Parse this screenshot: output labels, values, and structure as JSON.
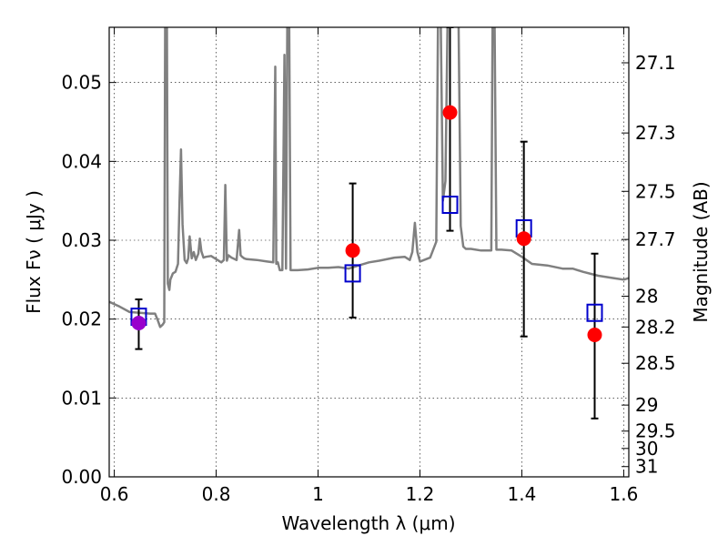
{
  "chart_data": {
    "type": "scatter",
    "xlabel": "Wavelength  λ (μm)",
    "ylabel": "Flux  Fν  ( μJy )",
    "ylabel_right": "Magnitude (AB)",
    "xlim": [
      0.59,
      1.61
    ],
    "ylim": [
      0.0,
      0.057
    ],
    "grid": true,
    "x_ticks": [
      0.6,
      0.8,
      1.0,
      1.2,
      1.4,
      1.6
    ],
    "x_tick_labels": [
      "0.6",
      "0.8",
      "1",
      "1.2",
      "1.4",
      "1.6"
    ],
    "y_ticks": [
      0.0,
      0.01,
      0.02,
      0.03,
      0.04,
      0.05
    ],
    "y_tick_labels": [
      "0.00",
      "0.01",
      "0.02",
      "0.03",
      "0.04",
      "0.05"
    ],
    "magnitude_ticks": [
      {
        "flux": 0.0525,
        "label": "27.1"
      },
      {
        "flux": 0.0436,
        "label": "27.3"
      },
      {
        "flux": 0.0362,
        "label": "27.5"
      },
      {
        "flux": 0.0301,
        "label": "27.7"
      },
      {
        "flux": 0.0229,
        "label": "28"
      },
      {
        "flux": 0.019,
        "label": "28.2"
      },
      {
        "flux": 0.0144,
        "label": "28.5"
      },
      {
        "flux": 0.0091,
        "label": "29"
      },
      {
        "flux": 0.0058,
        "label": "29.5"
      },
      {
        "flux": 0.0036,
        "label": "30"
      },
      {
        "flux": 0.0013,
        "label": "31"
      }
    ],
    "series": [
      {
        "name": "model spectrum",
        "kind": "line",
        "color": "#808080",
        "x": [
          0.59,
          0.61,
          0.63,
          0.65,
          0.67,
          0.68,
          0.685,
          0.69,
          0.695,
          0.698,
          0.7,
          0.703,
          0.705,
          0.708,
          0.71,
          0.715,
          0.72,
          0.725,
          0.728,
          0.731,
          0.734,
          0.738,
          0.742,
          0.745,
          0.748,
          0.752,
          0.756,
          0.76,
          0.765,
          0.768,
          0.771,
          0.775,
          0.78,
          0.79,
          0.8,
          0.81,
          0.815,
          0.818,
          0.821,
          0.824,
          0.83,
          0.84,
          0.845,
          0.848,
          0.851,
          0.855,
          0.86,
          0.88,
          0.9,
          0.912,
          0.916,
          0.918,
          0.921,
          0.925,
          0.93,
          0.934,
          0.937,
          0.94,
          0.943,
          0.946,
          0.95,
          0.96,
          0.98,
          1.0,
          1.02,
          1.04,
          1.06,
          1.08,
          1.1,
          1.12,
          1.15,
          1.17,
          1.18,
          1.185,
          1.19,
          1.195,
          1.2,
          1.22,
          1.232,
          1.236,
          1.24,
          1.245,
          1.25,
          1.255,
          1.26,
          1.265,
          1.27,
          1.275,
          1.28,
          1.285,
          1.29,
          1.3,
          1.32,
          1.34,
          1.343,
          1.346,
          1.35,
          1.36,
          1.38,
          1.4,
          1.42,
          1.45,
          1.48,
          1.5,
          1.52,
          1.55,
          1.58,
          1.6,
          1.61
        ],
        "y": [
          0.0222,
          0.0216,
          0.0209,
          0.0208,
          0.0207,
          0.0207,
          0.0199,
          0.019,
          0.0193,
          0.0196,
          0.062,
          0.062,
          0.0245,
          0.0237,
          0.025,
          0.0258,
          0.026,
          0.027,
          0.035,
          0.0415,
          0.032,
          0.0275,
          0.0271,
          0.0277,
          0.0305,
          0.0277,
          0.0285,
          0.0275,
          0.0283,
          0.0302,
          0.0286,
          0.0278,
          0.0279,
          0.028,
          0.0276,
          0.0272,
          0.0275,
          0.037,
          0.0274,
          0.0281,
          0.0278,
          0.0275,
          0.0313,
          0.0281,
          0.0279,
          0.0277,
          0.0276,
          0.0275,
          0.0273,
          0.0272,
          0.052,
          0.027,
          0.0272,
          0.0262,
          0.0262,
          0.0535,
          0.0264,
          0.062,
          0.062,
          0.0262,
          0.0262,
          0.0262,
          0.0263,
          0.0265,
          0.0265,
          0.0266,
          0.0264,
          0.0268,
          0.0272,
          0.0274,
          0.0278,
          0.0279,
          0.0275,
          0.0285,
          0.0322,
          0.0285,
          0.0273,
          0.0278,
          0.0298,
          0.062,
          0.062,
          0.035,
          0.0375,
          0.062,
          0.062,
          0.062,
          0.062,
          0.062,
          0.0318,
          0.0292,
          0.0289,
          0.0289,
          0.0287,
          0.0287,
          0.062,
          0.062,
          0.0288,
          0.0288,
          0.0287,
          0.0279,
          0.027,
          0.0268,
          0.0264,
          0.0264,
          0.026,
          0.0255,
          0.0252,
          0.025,
          0.0252
        ]
      },
      {
        "name": "model photometry",
        "kind": "marker",
        "marker": "square",
        "color": "#0000cc",
        "x": [
          0.648,
          1.068,
          1.259,
          1.404,
          1.543
        ],
        "y": [
          0.0203,
          0.0258,
          0.0345,
          0.0315,
          0.0208
        ]
      },
      {
        "name": "observed photometry",
        "kind": "marker",
        "marker": "circle",
        "x": [
          0.648,
          1.068,
          1.259,
          1.404,
          1.543
        ],
        "y": [
          0.0195,
          0.0287,
          0.0462,
          0.0302,
          0.018
        ],
        "colors": [
          "#9900cc",
          "#ff0000",
          "#ff0000",
          "#ff0000",
          "#ff0000"
        ],
        "err_low": [
          0.0162,
          0.0202,
          0.0312,
          0.0178,
          0.0074
        ],
        "err_high": [
          0.0225,
          0.0372,
          0.057,
          0.0425,
          0.0283
        ]
      }
    ]
  }
}
